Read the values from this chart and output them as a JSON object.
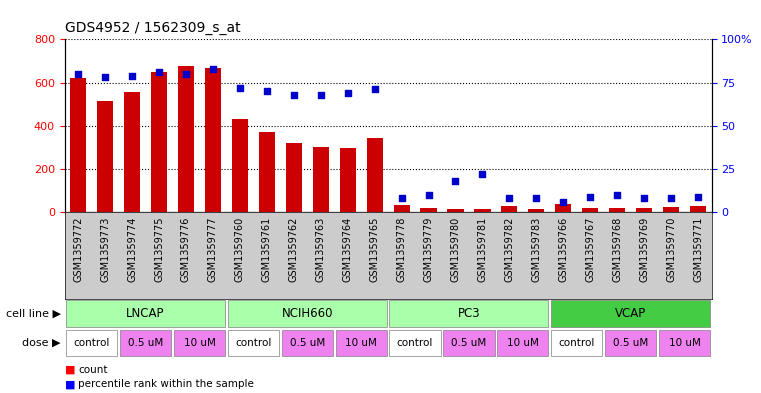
{
  "title": "GDS4952 / 1562309_s_at",
  "samples": [
    "GSM1359772",
    "GSM1359773",
    "GSM1359774",
    "GSM1359775",
    "GSM1359776",
    "GSM1359777",
    "GSM1359760",
    "GSM1359761",
    "GSM1359762",
    "GSM1359763",
    "GSM1359764",
    "GSM1359765",
    "GSM1359778",
    "GSM1359779",
    "GSM1359780",
    "GSM1359781",
    "GSM1359782",
    "GSM1359783",
    "GSM1359766",
    "GSM1359767",
    "GSM1359768",
    "GSM1359769",
    "GSM1359770",
    "GSM1359771"
  ],
  "counts": [
    620,
    515,
    555,
    650,
    675,
    665,
    430,
    370,
    320,
    300,
    295,
    345,
    35,
    20,
    15,
    15,
    30,
    15,
    40,
    20,
    20,
    20,
    25,
    30
  ],
  "percentiles": [
    80,
    78,
    79,
    81,
    80,
    83,
    72,
    70,
    68,
    68,
    69,
    71,
    8,
    10,
    18,
    22,
    8,
    8,
    6,
    9,
    10,
    8,
    8,
    9
  ],
  "cell_lines": [
    {
      "name": "LNCAP",
      "start": 0,
      "end": 6,
      "color": "#aaffaa"
    },
    {
      "name": "NCIH660",
      "start": 6,
      "end": 12,
      "color": "#aaffaa"
    },
    {
      "name": "PC3",
      "start": 12,
      "end": 18,
      "color": "#aaffaa"
    },
    {
      "name": "VCAP",
      "start": 18,
      "end": 24,
      "color": "#44cc44"
    }
  ],
  "dose_groups": [
    {
      "label": "control",
      "start": 0,
      "end": 2,
      "bg": "white"
    },
    {
      "label": "0.5 uM",
      "start": 2,
      "end": 4,
      "bg": "#ee82ee"
    },
    {
      "label": "10 uM",
      "start": 4,
      "end": 6,
      "bg": "#ee82ee"
    },
    {
      "label": "control",
      "start": 6,
      "end": 8,
      "bg": "white"
    },
    {
      "label": "0.5 uM",
      "start": 8,
      "end": 10,
      "bg": "#ee82ee"
    },
    {
      "label": "10 uM",
      "start": 10,
      "end": 12,
      "bg": "#ee82ee"
    },
    {
      "label": "control",
      "start": 12,
      "end": 14,
      "bg": "white"
    },
    {
      "label": "0.5 uM",
      "start": 14,
      "end": 16,
      "bg": "#ee82ee"
    },
    {
      "label": "10 uM",
      "start": 16,
      "end": 18,
      "bg": "#ee82ee"
    },
    {
      "label": "control",
      "start": 18,
      "end": 20,
      "bg": "white"
    },
    {
      "label": "0.5 uM",
      "start": 20,
      "end": 22,
      "bg": "#ee82ee"
    },
    {
      "label": "10 uM",
      "start": 22,
      "end": 24,
      "bg": "#ee82ee"
    }
  ],
  "ylim_left": [
    0,
    800
  ],
  "ylim_right": [
    0,
    100
  ],
  "yticks_left": [
    0,
    200,
    400,
    600,
    800
  ],
  "yticks_right": [
    0,
    25,
    50,
    75,
    100
  ],
  "bar_color": "#cc0000",
  "dot_color": "#0000cc",
  "gray_bg": "#cccccc"
}
